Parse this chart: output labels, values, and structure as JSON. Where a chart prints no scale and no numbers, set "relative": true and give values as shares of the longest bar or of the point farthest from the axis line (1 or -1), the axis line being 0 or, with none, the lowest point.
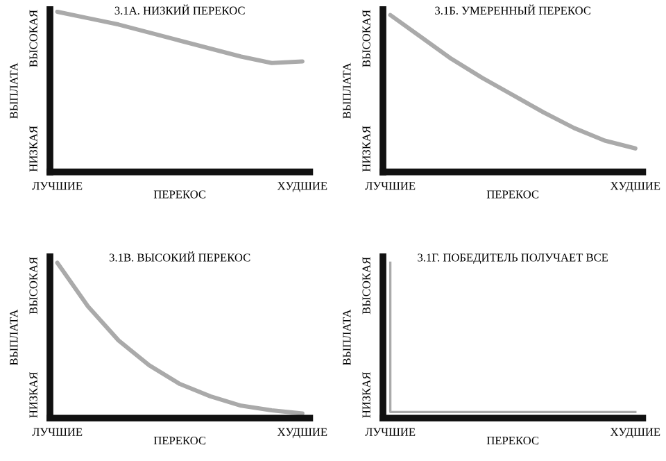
{
  "chart_data": [
    {
      "type": "line",
      "title": "3.1А. НИЗКИЙ ПЕРЕКОС",
      "xlabel": "ПЕРЕКОС",
      "ylabel": "ВЫПЛАТА",
      "relative": true,
      "grid": false,
      "legend": false,
      "categories": [
        "ЛУЧШИЕ",
        null,
        null,
        null,
        null,
        null,
        null,
        null,
        "ХУДШИЕ"
      ],
      "series": [
        {
          "color": "#aaaaaa",
          "values": [
            1,
            0.96,
            0.92,
            0.87,
            0.82,
            0.77,
            0.72,
            0.68,
            0.69
          ]
        }
      ],
      "annotations": [
        "НИЗКАЯ",
        "ВЫСОКАЯ"
      ]
    },
    {
      "type": "line",
      "title": "3.1Б. УМЕРЕННЫЙ ПЕРЕКОС",
      "xlabel": "ПЕРЕКОС",
      "ylabel": "ВЫПЛАТА",
      "relative": true,
      "grid": false,
      "legend": false,
      "categories": [
        "ЛУЧШИЕ",
        null,
        null,
        null,
        null,
        null,
        null,
        null,
        "ХУДШИЕ"
      ],
      "series": [
        {
          "color": "#aaaaaa",
          "values": [
            1,
            0.86,
            0.72,
            0.6,
            0.49,
            0.38,
            0.28,
            0.2,
            0.15
          ]
        }
      ],
      "annotations": [
        "НИЗКАЯ",
        "ВЫСОКАЯ"
      ]
    },
    {
      "type": "line",
      "title": "3.1В. ВЫСОКИЙ ПЕРЕКОС",
      "xlabel": "ПЕРЕКОС",
      "ylabel": "ВЫПЛАТА",
      "relative": true,
      "grid": false,
      "legend": false,
      "categories": [
        "ЛУЧШИЕ",
        null,
        null,
        null,
        null,
        null,
        null,
        null,
        "ХУДШИЕ"
      ],
      "series": [
        {
          "color": "#aaaaaa",
          "values": [
            1,
            0.72,
            0.5,
            0.34,
            0.22,
            0.14,
            0.08,
            0.05,
            0.03
          ]
        }
      ],
      "annotations": [
        "НИЗКАЯ",
        "ВЫСОКАЯ"
      ]
    },
    {
      "type": "step",
      "title": "3.1Г. ПОБЕДИТЕЛЬ ПОЛУЧАЕТ ВСЕ",
      "xlabel": "ПЕРЕКОС",
      "ylabel": "ВЫПЛАТА",
      "relative": true,
      "grid": false,
      "legend": false,
      "categories": [
        "ЛУЧШИЕ",
        null,
        null,
        null,
        null,
        null,
        null,
        null,
        "ХУДШИЕ"
      ],
      "series": [
        {
          "color": "#aaaaaa",
          "values": [
            1,
            0.04,
            0.04,
            0.04,
            0.04,
            0.04,
            0.04,
            0.04,
            0.04
          ]
        }
      ],
      "annotations": [
        "НИЗКАЯ",
        "ВЫСОКАЯ"
      ]
    }
  ]
}
